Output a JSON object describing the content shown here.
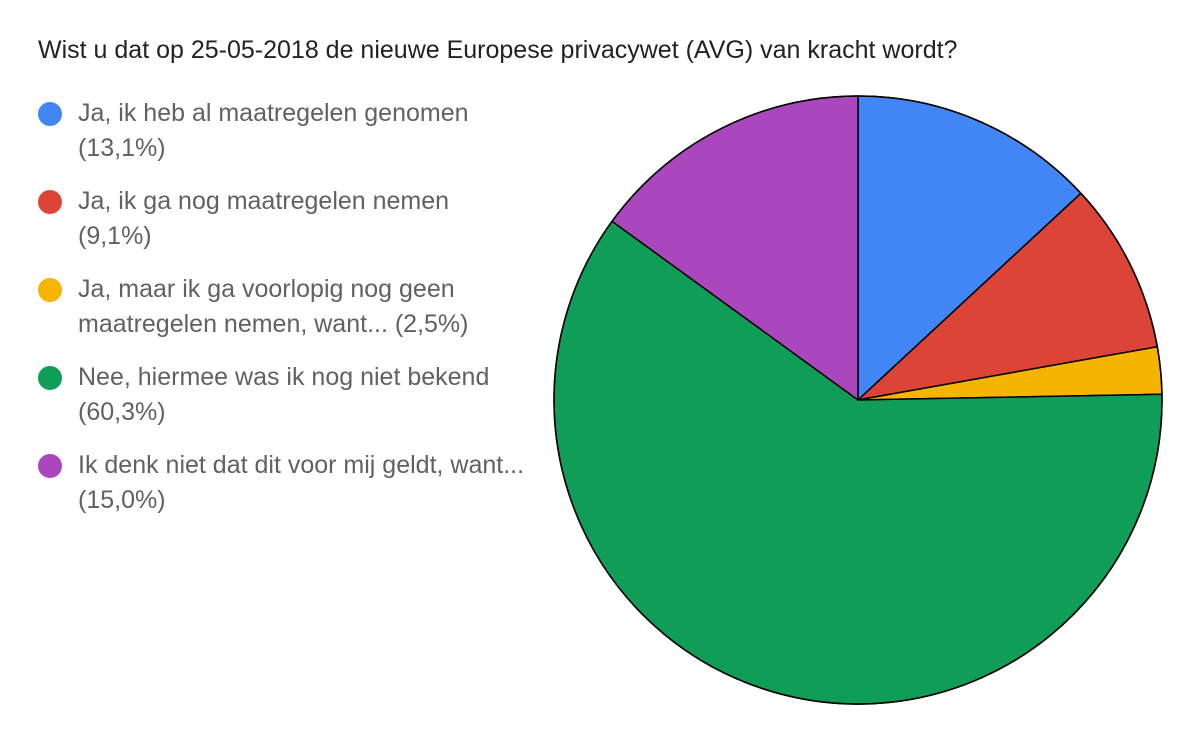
{
  "chart_data": {
    "type": "pie",
    "title": "Wist u dat op 25-05-2018 de nieuwe Europese privacywet (AVG) van kracht wordt?",
    "legend_position": "left",
    "slice_order": "clockwise-from-top",
    "categories": [
      "Ja, ik heb al maatregelen genomen",
      "Ja, ik ga nog maatregelen nemen",
      "Ja, maar ik ga voorlopig nog geen maatregelen nemen, want...",
      "Nee, hiermee was ik nog niet bekend",
      "Ik denk niet dat dit voor mij geldt, want..."
    ],
    "values": [
      13.1,
      9.1,
      2.5,
      60.3,
      15.0
    ],
    "legend_labels": [
      "Ja, ik heb al maatregelen genomen (13,1%)",
      "Ja, ik ga nog maatregelen nemen (9,1%)",
      "Ja, maar ik ga voorlopig nog geen maatregelen nemen, want... (2,5%)",
      "Nee, hiermee was ik nog niet bekend (60,3%)",
      "Ik denk niet dat dit voor mij geldt, want... (15,0%)"
    ],
    "colors": [
      "#4285f4",
      "#db4437",
      "#f4b400",
      "#0f9d58",
      "#ab47bc"
    ]
  }
}
